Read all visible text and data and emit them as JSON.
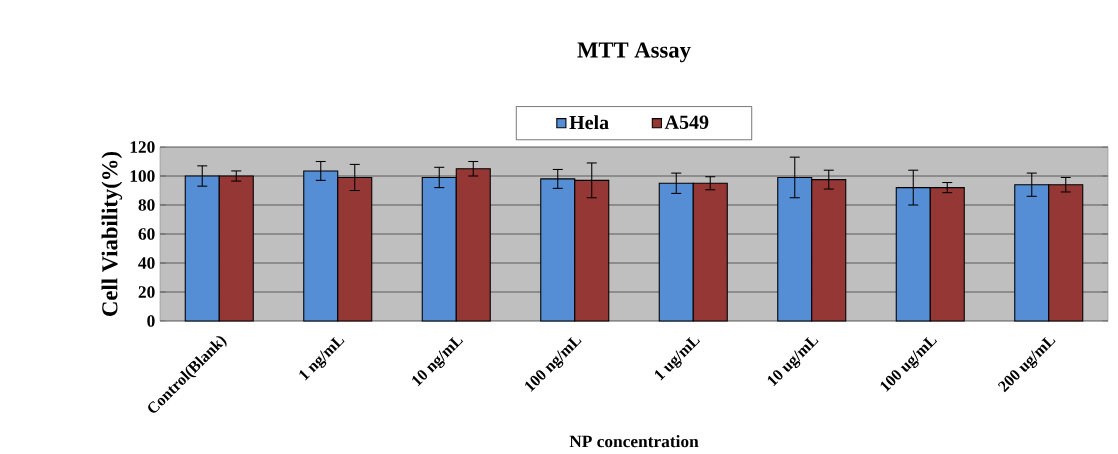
{
  "chart_data": {
    "type": "bar",
    "title": "MTT Assay",
    "xlabel": "NP concentration",
    "ylabel": "Cell Viability(%)",
    "categories": [
      "Control(Blank)",
      "1 ng/mL",
      "10 ng/mL",
      "100 ng/mL",
      "1 ug/mL",
      "10 ug/mL",
      "100 ug/mL",
      "200 ug/mL"
    ],
    "series": [
      {
        "name": "Hela",
        "color": "#558ed5",
        "values": [
          100,
          103.5,
          99,
          98,
          95,
          99,
          92,
          94
        ],
        "errors": [
          7,
          6.5,
          7,
          6.5,
          7,
          14,
          12,
          8
        ]
      },
      {
        "name": "A549",
        "color": "#953735",
        "values": [
          100,
          99,
          105,
          97,
          95,
          97.5,
          92,
          94
        ],
        "errors": [
          3.5,
          9,
          5,
          12,
          4.5,
          6.5,
          3.5,
          5
        ]
      }
    ],
    "ylim": [
      0,
      120
    ],
    "yticks": [
      0,
      20,
      40,
      60,
      80,
      100,
      120
    ],
    "grid": "y",
    "legend": "top"
  }
}
